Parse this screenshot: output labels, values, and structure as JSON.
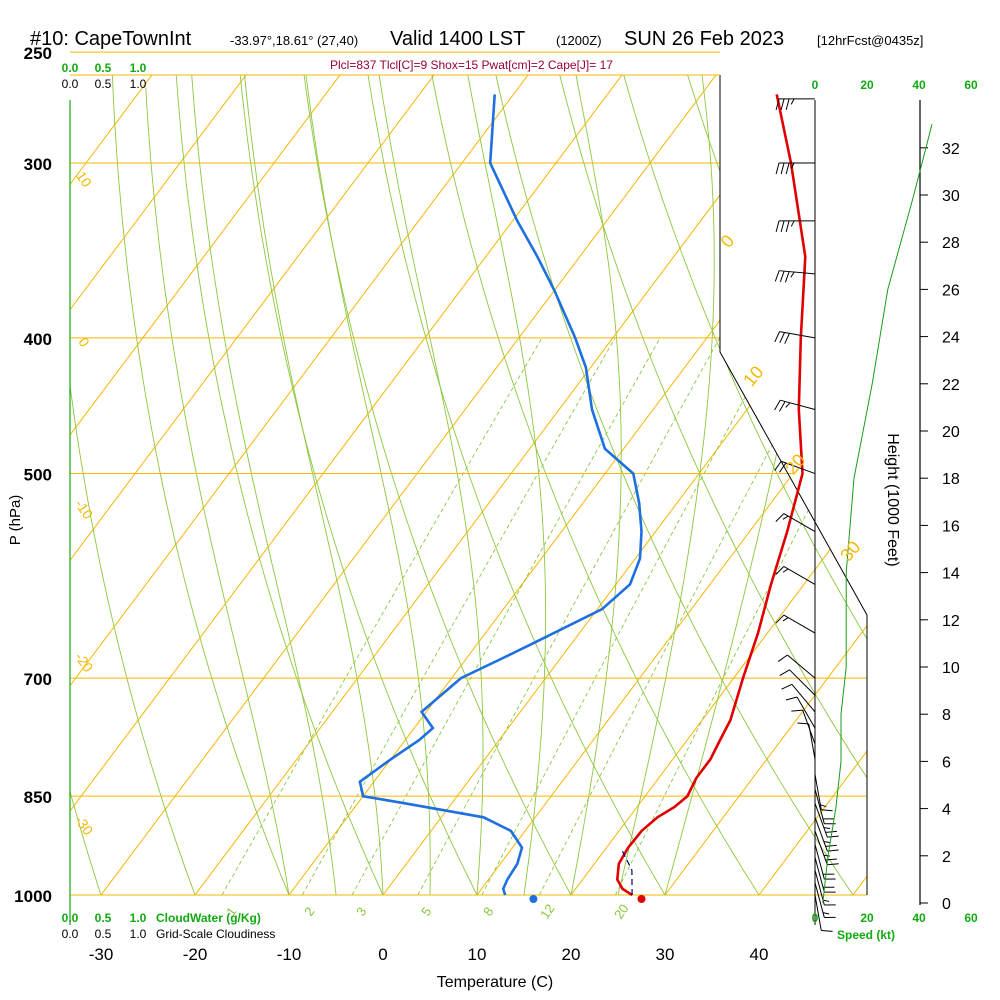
{
  "header": {
    "station": "#10: CapeTownInt",
    "coords": "-33.97°,18.61° (27,40)",
    "valid": "Valid 1400 LST",
    "zulu": "(1200Z)",
    "date": "SUN 26 Feb 2023",
    "forecast": "[12hrFcst@0435z]"
  },
  "indices": "Plcl=837 Tlcl[C]=9 Shox=15 Pwat[cm]=2 Cape[J]= 17",
  "colors": {
    "isotherm": "#f5b800",
    "dry_adiabat": "#8cc63f",
    "moist_adiabat": "#8cc63f",
    "temperature": "#e00000",
    "dewpoint": "#1e6fe0",
    "parcel": "#000080",
    "height_curve": "#1a9a1a",
    "green_text": "#11aa11",
    "index_text": "#990033"
  },
  "chart_data": {
    "type": "skew-T log-P sounding",
    "xlabel": "Temperature (C)",
    "ylabel": "P (hPa)",
    "right_label": "Height (1000 Feet)",
    "x_ticks": [
      "-30",
      "-20",
      "-10",
      "0",
      "10",
      "20",
      "30",
      "40"
    ],
    "x_tick_values": [
      -30,
      -20,
      -10,
      0,
      10,
      20,
      30,
      40
    ],
    "p_ticks": [
      "250",
      "300",
      "400",
      "500",
      "700",
      "850",
      "1000"
    ],
    "p_tick_values": [
      250,
      300,
      400,
      500,
      700,
      850,
      1000
    ],
    "height_ticks": [
      "0",
      "2",
      "4",
      "6",
      "8",
      "10",
      "12",
      "14",
      "16",
      "18",
      "20",
      "22",
      "24",
      "26",
      "28",
      "30",
      "32"
    ],
    "height_tick_values": [
      0,
      2,
      4,
      6,
      8,
      10,
      12,
      14,
      16,
      18,
      20,
      22,
      24,
      26,
      28,
      30,
      32
    ],
    "speed_ticks": [
      "0",
      "20",
      "40",
      "60"
    ],
    "speed_label": "Speed (kt)",
    "cloud_ticks": [
      "0.0",
      "0.5",
      "1.0"
    ],
    "cloudwater_label": "CloudWater (g/Kg)",
    "cloudiness_label": "Grid-Scale Cloudiness",
    "isotherm_labels": [
      "10",
      "0",
      "-10",
      "-20",
      "-30"
    ],
    "right_temp_labels": [
      "0",
      "10",
      "20",
      "30"
    ],
    "mixing_ratio_labels": [
      "1",
      "2",
      "3",
      "5",
      "8",
      "12",
      "20"
    ],
    "temperature": {
      "p": [
        1000,
        990,
        975,
        950,
        925,
        900,
        880,
        865,
        850,
        840,
        825,
        800,
        775,
        750,
        700,
        650,
        600,
        550,
        500,
        450,
        400,
        350,
        300,
        268
      ],
      "t": [
        26.5,
        25.0,
        23.7,
        22.6,
        22.3,
        22.4,
        23.0,
        24.0,
        24.5,
        24.3,
        24.0,
        24.0,
        23.5,
        23.0,
        21.0,
        19.0,
        16.5,
        14.0,
        11.0,
        5.5,
        0.0,
        -6.0,
        -15.0,
        -22.0
      ]
    },
    "dewpoint": {
      "p": [
        1000,
        990,
        975,
        950,
        925,
        900,
        880,
        860,
        850,
        830,
        800,
        775,
        760,
        740,
        700,
        680,
        660,
        625,
        600,
        575,
        550,
        525,
        500,
        480,
        450,
        420,
        400,
        370,
        350,
        330,
        300,
        268
      ],
      "td": [
        13.0,
        12.3,
        12.0,
        11.8,
        11.0,
        8.5,
        4.5,
        -5.0,
        -10.0,
        -11.5,
        -10.0,
        -8.5,
        -8.0,
        -10.5,
        -9.0,
        -6.5,
        -4.0,
        0.5,
        1.5,
        0.5,
        -1.5,
        -4.0,
        -7.0,
        -12.0,
        -16.5,
        -20.5,
        -24.0,
        -30.0,
        -34.5,
        -39.5,
        -47.0,
        -52.0
      ]
    },
    "parcel": {
      "p": [
        1000,
        960,
        925
      ],
      "t": [
        26.5,
        24.5,
        21.5
      ]
    },
    "surface_markers": {
      "t": 27.5,
      "td": 16.0
    },
    "winds": {
      "p": [
        270,
        300,
        330,
        360,
        400,
        450,
        500,
        550,
        600,
        650,
        700,
        720,
        740,
        760,
        780,
        800,
        820,
        840,
        860,
        880,
        900,
        920,
        940,
        960,
        980,
        1000
      ],
      "dir": [
        270,
        270,
        270,
        275,
        280,
        285,
        290,
        300,
        300,
        300,
        310,
        315,
        320,
        330,
        340,
        350,
        170,
        165,
        160,
        160,
        160,
        165,
        165,
        165,
        165,
        170
      ],
      "spd": [
        35,
        35,
        35,
        35,
        30,
        25,
        20,
        15,
        15,
        15,
        10,
        10,
        10,
        10,
        10,
        10,
        15,
        20,
        25,
        25,
        25,
        20,
        20,
        15,
        15,
        10
      ]
    },
    "height_profile": {
      "speed": [
        3,
        5,
        8,
        10,
        10,
        12,
        12,
        15,
        22,
        28,
        33,
        38,
        45
      ],
      "height_kft": [
        0,
        2,
        4,
        6,
        8,
        10,
        14,
        18,
        22,
        26,
        28,
        30,
        33
      ]
    }
  }
}
